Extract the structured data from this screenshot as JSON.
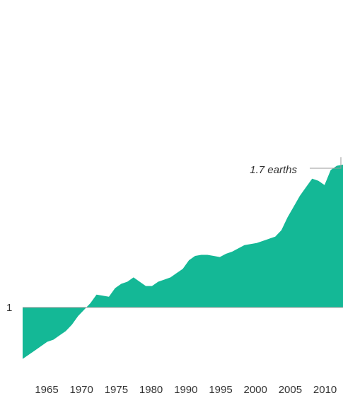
{
  "chart_data": {
    "type": "area",
    "x": [
      1961,
      1962,
      1963,
      1964,
      1965,
      1966,
      1967,
      1968,
      1969,
      1970,
      1971,
      1972,
      1973,
      1974,
      1975,
      1976,
      1977,
      1978,
      1979,
      1980,
      1981,
      1982,
      1983,
      1984,
      1985,
      1986,
      1987,
      1988,
      1989,
      1990,
      1991,
      1992,
      1993,
      1994,
      1995,
      1996,
      1997,
      1998,
      1999,
      2000,
      2001,
      2002,
      2003,
      2004,
      2005,
      2006,
      2007,
      2008,
      2009,
      2010,
      2011,
      2012,
      2013
    ],
    "values": [
      0.76,
      0.78,
      0.8,
      0.82,
      0.84,
      0.85,
      0.87,
      0.89,
      0.92,
      0.96,
      0.99,
      1.02,
      1.06,
      1.055,
      1.05,
      1.09,
      1.11,
      1.12,
      1.14,
      1.12,
      1.1,
      1.1,
      1.12,
      1.13,
      1.14,
      1.16,
      1.18,
      1.22,
      1.24,
      1.245,
      1.245,
      1.24,
      1.235,
      1.25,
      1.26,
      1.275,
      1.29,
      1.295,
      1.3,
      1.31,
      1.32,
      1.33,
      1.36,
      1.42,
      1.47,
      1.52,
      1.56,
      1.6,
      1.59,
      1.57,
      1.64,
      1.66,
      1.665
    ],
    "baseline": 1,
    "xlim": [
      1961,
      2013
    ],
    "ylim": [
      0.72,
      1.78
    ],
    "colors": {
      "fill": "#14b896",
      "axis": "#9a9a9a",
      "text": "#333333"
    },
    "reference_label": "1",
    "annotation": {
      "text": "1.7 earths",
      "value": 1.7
    },
    "x_tick_labels": [
      "1965",
      "1970",
      "1975",
      "1980",
      "1990",
      "1995",
      "2000",
      "2005",
      "2010"
    ],
    "grid": false,
    "legend": "none"
  }
}
